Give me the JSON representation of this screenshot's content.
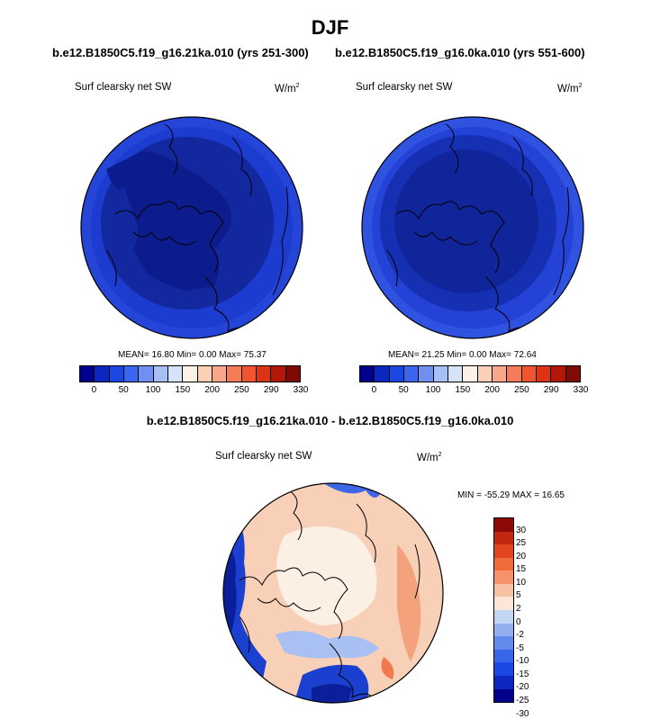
{
  "title": "DJF",
  "panels": [
    {
      "case_title": "b.e12.B1850C5.f19_g16.21ka.010 (yrs 251-300)",
      "variable": "Surf clearsky net SW",
      "units_base": "W/m",
      "units_sup": "2",
      "stats": "MEAN= 16.80  Min=  0.00  Max= 75.37"
    },
    {
      "case_title": "b.e12.B1850C5.f19_g16.0ka.010 (yrs 551-600)",
      "variable": "Surf clearsky net SW",
      "units_base": "W/m",
      "units_sup": "2",
      "stats": "MEAN= 21.25  Min=  0.00  Max= 72.64"
    }
  ],
  "diff_panel": {
    "title": "b.e12.B1850C5.f19_g16.21ka.010 - b.e12.B1850C5.f19_g16.0ka.010",
    "variable": "Surf clearsky net SW",
    "units_base": "W/m",
    "units_sup": "2",
    "stats": "MIN = -55.29 MAX =  16.65"
  },
  "colors": {
    "abs_scale": [
      "#00008c",
      "#0c27c0",
      "#1b47e4",
      "#3b66f0",
      "#6f90f0",
      "#a6bff4",
      "#d6e4fa",
      "#fdf0e6",
      "#fbd0b6",
      "#f8a888",
      "#f57c58",
      "#f1552f",
      "#dd3213",
      "#b3170a",
      "#800a06"
    ],
    "diff_scale": [
      "#00008c",
      "#0c27c0",
      "#1b47e4",
      "#3866e8",
      "#6489ec",
      "#93aff0",
      "#c4d6f6",
      "#fbe6d8",
      "#f8c2a4",
      "#f5916b",
      "#f16a3c",
      "#e34520",
      "#c2270f",
      "#8c0a05"
    ],
    "coastline": "#000000"
  },
  "chart_data": [
    {
      "type": "heatmap",
      "projection": "north-polar-stereographic",
      "title": "b.e12.B1850C5.f19_g16.21ka.010 (yrs 251-300)",
      "variable": "Surf clearsky net SW",
      "units": "W/m2",
      "mean": 16.8,
      "min": 0.0,
      "max": 75.37,
      "colorbar_ticks": [
        "0",
        "50",
        "100",
        "150",
        "200",
        "250",
        "290",
        "330"
      ],
      "colorbar_orientation": "horizontal"
    },
    {
      "type": "heatmap",
      "projection": "north-polar-stereographic",
      "title": "b.e12.B1850C5.f19_g16.0ka.010 (yrs 551-600)",
      "variable": "Surf clearsky net SW",
      "units": "W/m2",
      "mean": 21.25,
      "min": 0.0,
      "max": 72.64,
      "colorbar_ticks": [
        "0",
        "50",
        "100",
        "150",
        "200",
        "250",
        "290",
        "330"
      ],
      "colorbar_orientation": "horizontal"
    },
    {
      "type": "heatmap",
      "projection": "north-polar-stereographic",
      "title": "b.e12.B1850C5.f19_g16.21ka.010 - b.e12.B1850C5.f19_g16.0ka.010",
      "variable": "Surf clearsky net SW",
      "units": "W/m2",
      "min": -55.29,
      "max": 16.65,
      "colorbar_ticks": [
        "30",
        "25",
        "20",
        "15",
        "10",
        "5",
        "2",
        "0",
        "-2",
        "-5",
        "-10",
        "-15",
        "-20",
        "-25",
        "-30"
      ],
      "colorbar_orientation": "vertical"
    }
  ]
}
